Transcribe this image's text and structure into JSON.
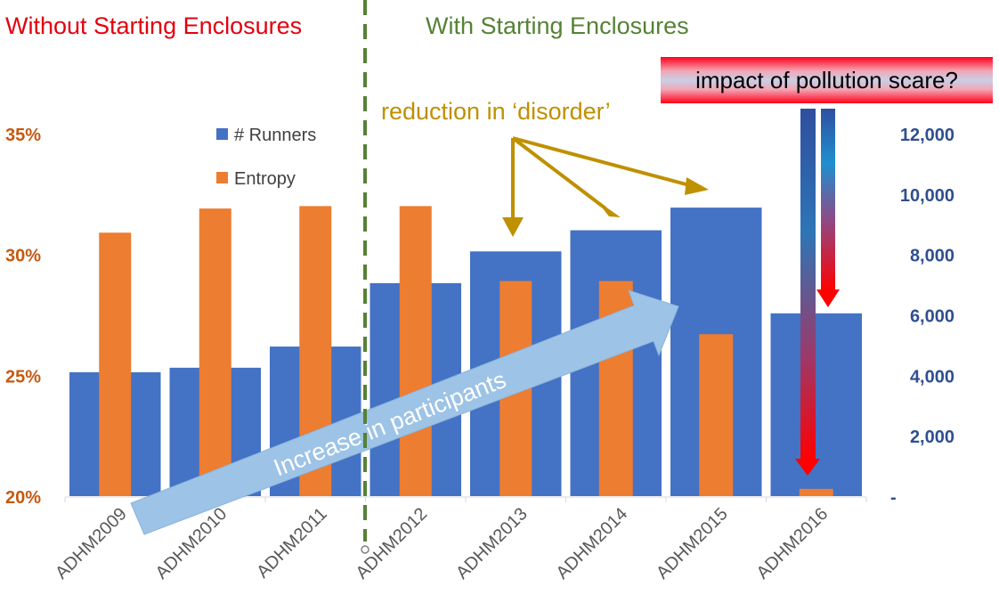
{
  "headers": {
    "left": "Without Starting Enclosures",
    "right": "With Starting Enclosures"
  },
  "annotations": {
    "disorder": "reduction in ‘disorder’",
    "pollution": "impact of pollution scare?",
    "participants": "Increase in participants"
  },
  "colors": {
    "runners": "#4472c4",
    "entropy": "#ed7d31",
    "left_axis": "#c55a11",
    "right_axis": "#2f4f8f",
    "left_header": "#e3000f",
    "right_header": "#548235",
    "disorder_arrow": "#bf9000",
    "participants_arrow": "#9dc3e6"
  },
  "chart_data": {
    "type": "bar",
    "categories": [
      "ADHM2009",
      "ADHM2010",
      "ADHM2011",
      "ADHM2012",
      "ADHM2013",
      "ADHM2014",
      "ADHM2015",
      "ADHM2016"
    ],
    "series": [
      {
        "name": "# Runners",
        "axis": "right",
        "values": [
          4100,
          4250,
          4950,
          7050,
          8100,
          8800,
          9550,
          6050
        ]
      },
      {
        "name": "Entropy",
        "axis": "left",
        "values": [
          30.9,
          31.9,
          32.0,
          32.0,
          28.9,
          28.9,
          26.7,
          20.3
        ]
      }
    ],
    "left_axis": {
      "ylim": [
        20,
        36
      ],
      "ticks": [
        20,
        25,
        30,
        35
      ],
      "tick_labels": [
        "20%",
        "25%",
        "30%",
        "35%"
      ]
    },
    "right_axis": {
      "ylim": [
        0,
        12800
      ],
      "ticks": [
        0,
        2000,
        4000,
        6000,
        8000,
        10000,
        12000
      ],
      "tick_labels": [
        "-",
        "2,000",
        "4,000",
        "6,000",
        "8,000",
        "10,000",
        "12,000"
      ]
    },
    "legend": {
      "placement": "top-left",
      "entries": [
        "# Runners",
        "Entropy"
      ]
    },
    "divider_after": "ADHM2011"
  }
}
